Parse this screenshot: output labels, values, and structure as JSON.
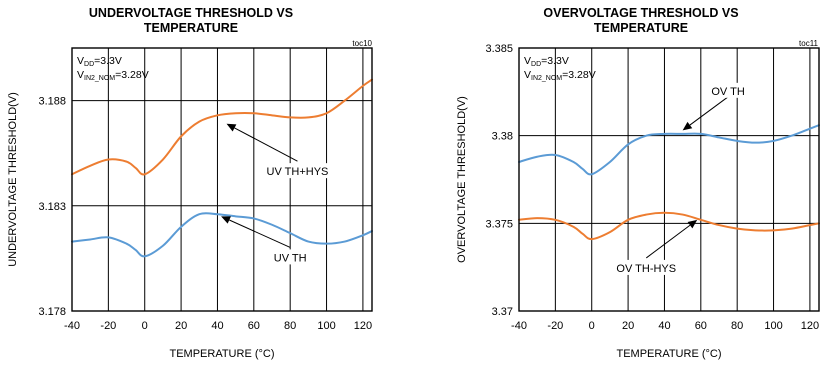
{
  "chart_data": [
    {
      "type": "line",
      "title_lines": [
        "UNDERVOLTAGE THRESHOLD VS",
        "TEMPERATURE"
      ],
      "figure_code": "toc10",
      "xlabel": "TEMPERATURE (°C)",
      "ylabel": "UNDERVOLTAGE THRESHOLD(V)",
      "xlim": [
        -40,
        125
      ],
      "ylim": [
        3.178,
        3.1905
      ],
      "x_ticks": [
        -40,
        -20,
        0,
        20,
        40,
        60,
        80,
        100,
        120
      ],
      "x_tick_labels": [
        "-40",
        "-20",
        "0",
        "20",
        "40",
        "60",
        "80",
        "100",
        "120"
      ],
      "y_ticks": [
        3.178,
        3.183,
        3.188
      ],
      "y_tick_labels": [
        "3.178",
        "3.183",
        "3.188"
      ],
      "grid": true,
      "conditions": [
        {
          "main": "V",
          "sub": "DD",
          "rest": "=3.3V"
        },
        {
          "main": "V",
          "sub": "IN2_NOM",
          "rest": "=3.28V"
        }
      ],
      "series": [
        {
          "name": "UV TH+HYS",
          "color": "#ed7d31",
          "x": [
            -40,
            -30,
            -20,
            -10,
            -5,
            0,
            10,
            20,
            30,
            40,
            50,
            60,
            70,
            80,
            90,
            100,
            110,
            120,
            125
          ],
          "y": [
            3.1845,
            3.1849,
            3.1852,
            3.1851,
            3.1848,
            3.1845,
            3.1852,
            3.1863,
            3.187,
            3.1873,
            3.1874,
            3.1874,
            3.1873,
            3.1872,
            3.1872,
            3.1874,
            3.188,
            3.1887,
            3.189
          ]
        },
        {
          "name": "UV TH",
          "color": "#5b9bd5",
          "x": [
            -40,
            -30,
            -20,
            -10,
            -5,
            0,
            10,
            20,
            30,
            40,
            50,
            60,
            70,
            80,
            90,
            100,
            110,
            120,
            125
          ],
          "y": [
            3.1813,
            3.1814,
            3.1815,
            3.1812,
            3.1809,
            3.1806,
            3.1811,
            3.182,
            3.1826,
            3.1826,
            3.1825,
            3.1824,
            3.1821,
            3.1817,
            3.1813,
            3.1812,
            3.1813,
            3.1816,
            3.1818
          ]
        }
      ],
      "annotations": [
        {
          "text": "UV TH+HYS",
          "x": 84,
          "y": 3.1846,
          "arrow_to": [
            45,
            3.1869
          ]
        },
        {
          "text": "UV TH",
          "x": 80,
          "y": 3.1805,
          "arrow_to": [
            42,
            3.1825
          ]
        }
      ]
    },
    {
      "type": "line",
      "title_lines": [
        "OVERVOLTAGE THRESHOLD VS",
        "TEMPERATURE"
      ],
      "figure_code": "toc11",
      "xlabel": "TEMPERATURE (°C)",
      "ylabel": "OVERVOLTAGE THRESHOLD(V)",
      "xlim": [
        -40,
        125
      ],
      "ylim": [
        3.37,
        3.385
      ],
      "x_ticks": [
        -40,
        -20,
        0,
        20,
        40,
        60,
        80,
        100,
        120
      ],
      "x_tick_labels": [
        "-40",
        "-20",
        "0",
        "20",
        "40",
        "60",
        "80",
        "100",
        "120"
      ],
      "y_ticks": [
        3.37,
        3.375,
        3.38,
        3.385
      ],
      "y_tick_labels": [
        "3.37",
        "3.375",
        "3.38",
        "3.385"
      ],
      "grid": true,
      "conditions": [
        {
          "main": "V",
          "sub": "DD",
          "rest": "=3.3V"
        },
        {
          "main": "V",
          "sub": "IN2_NOM",
          "rest": "=3.28V"
        }
      ],
      "series": [
        {
          "name": "OV TH",
          "color": "#5b9bd5",
          "x": [
            -40,
            -30,
            -20,
            -10,
            -5,
            0,
            10,
            20,
            30,
            40,
            50,
            60,
            70,
            80,
            90,
            100,
            110,
            120,
            125
          ],
          "y": [
            3.3785,
            3.3788,
            3.3789,
            3.3785,
            3.3781,
            3.3778,
            3.3785,
            3.3795,
            3.38,
            3.3801,
            3.3801,
            3.3801,
            3.3799,
            3.3797,
            3.3796,
            3.3797,
            3.38,
            3.3804,
            3.3806
          ]
        },
        {
          "name": "OV TH-HYS",
          "color": "#ed7d31",
          "x": [
            -40,
            -30,
            -20,
            -10,
            -5,
            0,
            10,
            20,
            30,
            40,
            50,
            60,
            70,
            80,
            90,
            100,
            110,
            120,
            125
          ],
          "y": [
            3.3752,
            3.3753,
            3.3752,
            3.3748,
            3.3744,
            3.3741,
            3.3745,
            3.3752,
            3.3755,
            3.3756,
            3.3755,
            3.3752,
            3.3749,
            3.3747,
            3.3746,
            3.3746,
            3.3747,
            3.3749,
            3.375
          ]
        }
      ],
      "annotations": [
        {
          "text": "OV TH",
          "x": 75,
          "y": 3.3825,
          "arrow_to": [
            50,
            3.3803
          ]
        },
        {
          "text": "OV TH-HYS",
          "x": 30,
          "y": 3.3724,
          "arrow_to": [
            58,
            3.3752
          ]
        }
      ]
    }
  ]
}
